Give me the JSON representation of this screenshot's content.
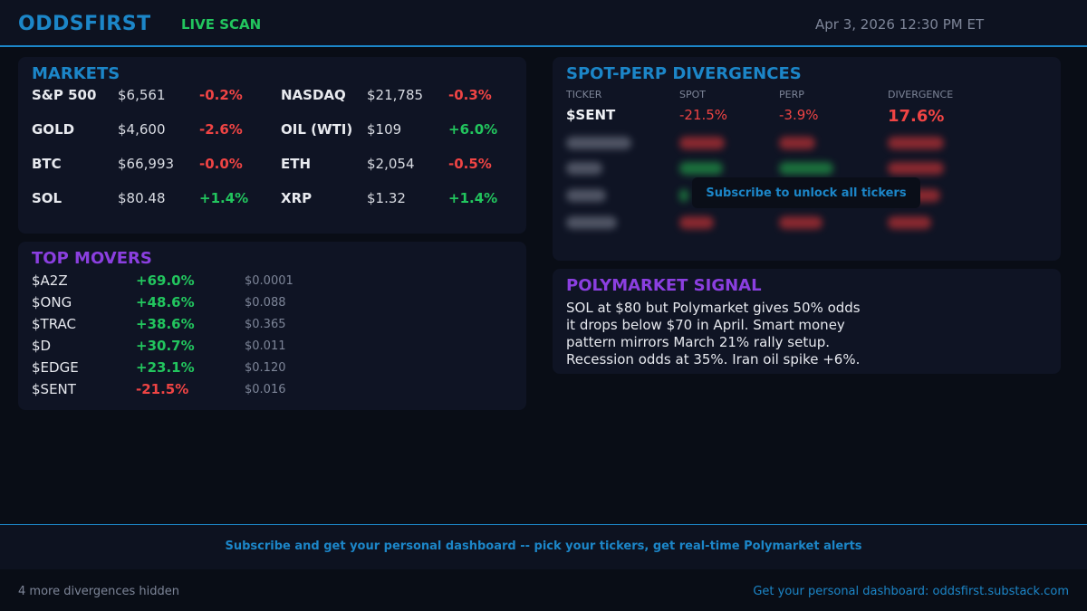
{
  "header": {
    "brand": "ODDSFIRST",
    "live_label": "LIVE SCAN",
    "datetime": "Apr 3, 2026 12:30 PM ET"
  },
  "markets": {
    "title": "MARKETS",
    "items": [
      {
        "name": "S&P 500",
        "price": "$6,561",
        "change": "-0.2%",
        "direction": "down"
      },
      {
        "name": "NASDAQ",
        "price": "$21,785",
        "change": "-0.3%",
        "direction": "down"
      },
      {
        "name": "GOLD",
        "price": "$4,600",
        "change": "-2.6%",
        "direction": "down"
      },
      {
        "name": "OIL (WTI)",
        "price": "$109",
        "change": "+6.0%",
        "direction": "up"
      },
      {
        "name": "BTC",
        "price": "$66,993",
        "change": "-0.0%",
        "direction": "down"
      },
      {
        "name": "ETH",
        "price": "$2,054",
        "change": "-0.5%",
        "direction": "down"
      },
      {
        "name": "SOL",
        "price": "$80.48",
        "change": "+1.4%",
        "direction": "up"
      },
      {
        "name": "XRP",
        "price": "$1.32",
        "change": "+1.4%",
        "direction": "up"
      }
    ]
  },
  "movers": {
    "title": "TOP MOVERS",
    "items": [
      {
        "ticker": "$A2Z",
        "pct": "+69.0%",
        "price": "$0.0001",
        "direction": "up"
      },
      {
        "ticker": "$ONG",
        "pct": "+48.6%",
        "price": "$0.088",
        "direction": "up"
      },
      {
        "ticker": "$TRAC",
        "pct": "+38.6%",
        "price": "$0.365",
        "direction": "up"
      },
      {
        "ticker": "$D",
        "pct": "+30.7%",
        "price": "$0.011",
        "direction": "up"
      },
      {
        "ticker": "$EDGE",
        "pct": "+23.1%",
        "price": "$0.120",
        "direction": "up"
      },
      {
        "ticker": "$SENT",
        "pct": "-21.5%",
        "price": "$0.016",
        "direction": "down"
      }
    ]
  },
  "divergences": {
    "title": "SPOT-PERP DIVERGENCES",
    "columns": {
      "ticker": "TICKER",
      "spot": "SPOT",
      "perp": "PERP",
      "divergence": "DIVERGENCE"
    },
    "visible_row": {
      "ticker": "$SENT",
      "spot": "-21.5%",
      "perp": "-3.9%",
      "divergence": "17.6%"
    },
    "unlock_label": "Subscribe to unlock all tickers"
  },
  "polymarket": {
    "title": "POLYMARKET SIGNAL",
    "lines": [
      "SOL at $80 but Polymarket gives 50% odds",
      "it drops below $70 in April. Smart money",
      "pattern mirrors March 21% rally setup.",
      "Recession odds at 35%. Iran oil spike +6%."
    ]
  },
  "footer": {
    "cta": "Subscribe and get your personal dashboard -- pick your tickers, get real-time Polymarket alerts",
    "hidden_note": "4 more divergences hidden",
    "link": "Get your personal dashboard: oddsfirst.substack.com"
  },
  "colors": {
    "accent": "#1c86c8",
    "purple": "#8b3fe0",
    "up": "#22c55e",
    "down": "#ef4444",
    "background": "#090d16",
    "panel": "#0f1424"
  }
}
